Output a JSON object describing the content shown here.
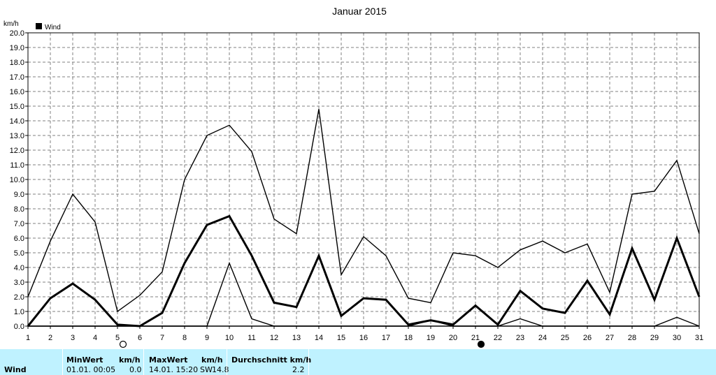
{
  "chart_data": {
    "type": "line",
    "title": "Januar 2015",
    "ylabel": "km/h",
    "xlabel": "",
    "legend": {
      "label": "Wind",
      "placement": "top-left",
      "color": "#000000"
    },
    "ylim": [
      0,
      20
    ],
    "yticks": [
      "0.0",
      "1.0",
      "2.0",
      "3.0",
      "4.0",
      "5.0",
      "6.0",
      "7.0",
      "8.0",
      "9.0",
      "10.0",
      "11.0",
      "12.0",
      "13.0",
      "14.0",
      "15.0",
      "16.0",
      "17.0",
      "18.0",
      "19.0",
      "20.0"
    ],
    "categories": [
      "1",
      "2",
      "3",
      "4",
      "5",
      "6",
      "7",
      "8",
      "9",
      "10",
      "11",
      "12",
      "13",
      "14",
      "15",
      "16",
      "17",
      "18",
      "19",
      "20",
      "21",
      "22",
      "23",
      "24",
      "25",
      "26",
      "27",
      "28",
      "29",
      "30",
      "31"
    ],
    "grid": true,
    "series": [
      {
        "values": [
          2.0,
          5.8,
          9.0,
          7.1,
          1.0,
          2.1,
          3.7,
          10.0,
          13.0,
          13.7,
          11.9,
          7.3,
          6.3,
          14.8,
          3.5,
          6.1,
          4.8,
          1.9,
          1.6,
          5.0,
          4.8,
          4.0,
          5.2,
          5.8,
          5.0,
          5.6,
          2.3,
          9.0,
          9.2,
          11.3,
          6.3
        ],
        "color": "#000000",
        "width": 1.4
      },
      {
        "values": [
          0.0,
          1.9,
          2.9,
          1.8,
          0.1,
          0.0,
          0.9,
          4.3,
          6.9,
          7.5,
          4.8,
          1.6,
          1.3,
          4.8,
          0.7,
          1.9,
          1.8,
          0.1,
          0.4,
          0.1,
          1.4,
          0.1,
          2.4,
          1.2,
          0.9,
          3.1,
          0.8,
          5.3,
          1.8,
          6.0,
          2.0
        ],
        "color": "#000000",
        "width": 3.0
      },
      {
        "values": [
          0.0,
          0.0,
          0.0,
          0.0,
          0.0,
          0.0,
          0.0,
          0.0,
          0.0,
          4.3,
          0.5,
          0.0,
          0.0,
          0.0,
          0.0,
          0.0,
          0.0,
          0.0,
          0.0,
          0.0,
          0.0,
          0.0,
          0.5,
          0.0,
          0.0,
          0.0,
          0.0,
          0.0,
          0.0,
          0.6,
          0.0
        ],
        "color": "#000000",
        "width": 1.4
      },
      {
        "values": [
          0.0,
          0.0,
          0.0,
          0.0,
          0.0,
          0.0,
          0.0,
          0.0,
          0.0,
          0.0,
          0.0,
          0.0,
          0.0,
          0.0,
          0.0,
          0.0,
          0.0,
          0.0,
          0.4,
          0.0,
          0.0,
          0.0,
          0.0,
          0.0,
          0.0,
          0.0,
          0.0,
          0.0,
          0.0,
          0.0,
          0.0
        ],
        "color": "#000000",
        "width": 1.4
      }
    ],
    "moon_phases": [
      {
        "day": 5,
        "phase": "full-moon"
      },
      {
        "day": 21,
        "phase": "new-moon"
      }
    ]
  },
  "stats": {
    "row_label": "Wind",
    "min_header": "MinWert",
    "min_unit": "km/h",
    "min_time": "01.01.  00:05",
    "min_value": "0.0",
    "max_header": "MaxWert",
    "max_unit": "km/h",
    "max_time": "14.01.  15:20",
    "max_dir": "SW",
    "max_value": "14.8",
    "avg_header": "Durchschnitt km/h",
    "avg_value": "2.2"
  },
  "colors": {
    "panel_bg": "#bff2ff",
    "grid": "#808080"
  }
}
